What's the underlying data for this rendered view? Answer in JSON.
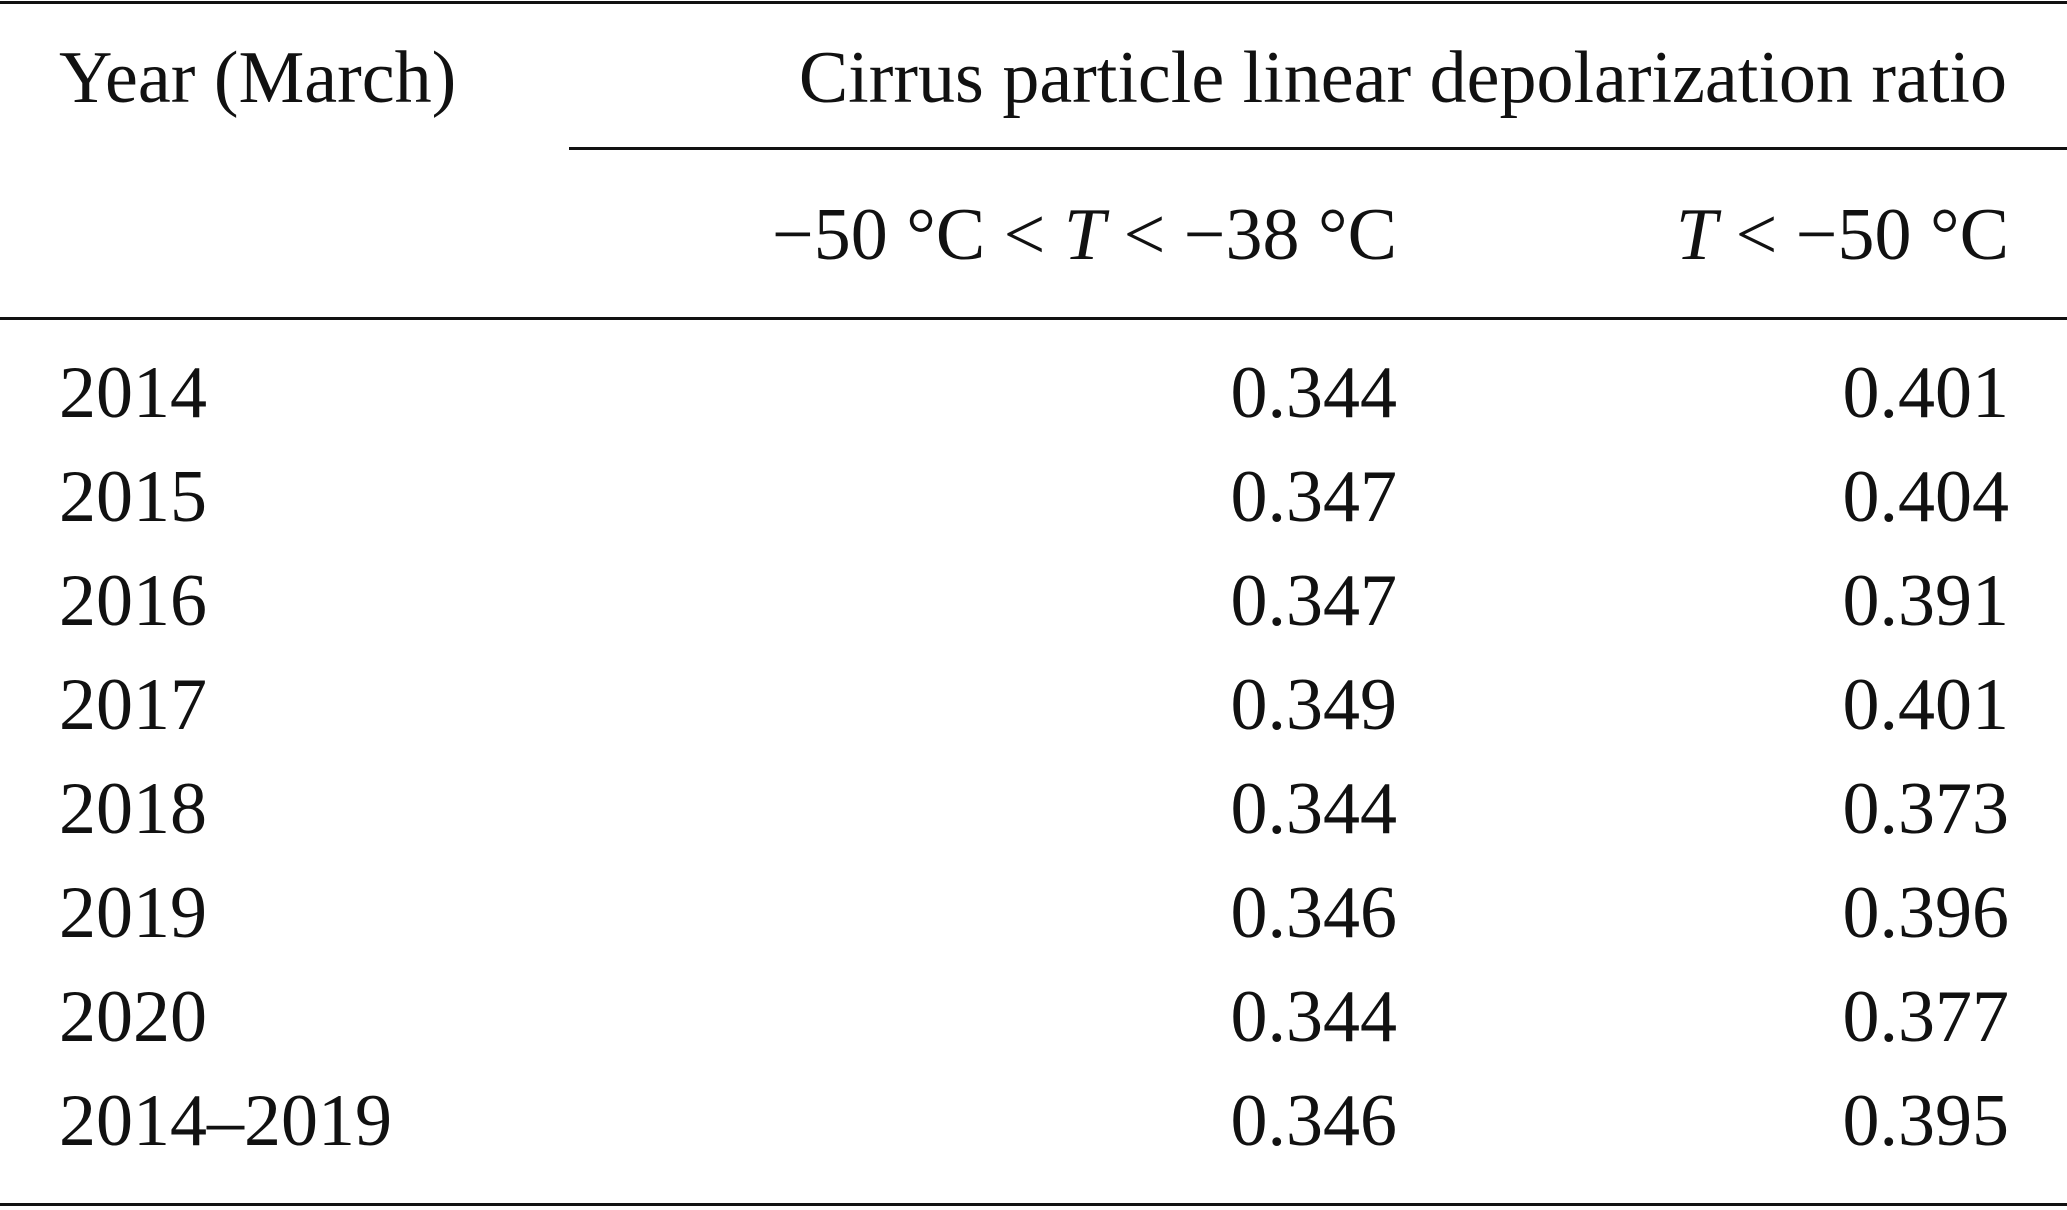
{
  "table": {
    "header": {
      "row_label": "Year (March)",
      "group": "Cirrus particle linear depolarization ratio",
      "subheaders": [
        [
          "−50 °C < ",
          "T",
          " < −38 °C"
        ],
        [
          "T",
          " < −50 °C"
        ]
      ]
    },
    "rows": [
      [
        "2014",
        "0.344",
        "0.401"
      ],
      [
        "2015",
        "0.347",
        "0.404"
      ],
      [
        "2016",
        "0.347",
        "0.391"
      ],
      [
        "2017",
        "0.349",
        "0.401"
      ],
      [
        "2018",
        "0.344",
        "0.373"
      ],
      [
        "2019",
        "0.346",
        "0.396"
      ],
      [
        "2020",
        "0.344",
        "0.377"
      ],
      [
        "2014–2019",
        "0.346",
        "0.395"
      ]
    ]
  }
}
